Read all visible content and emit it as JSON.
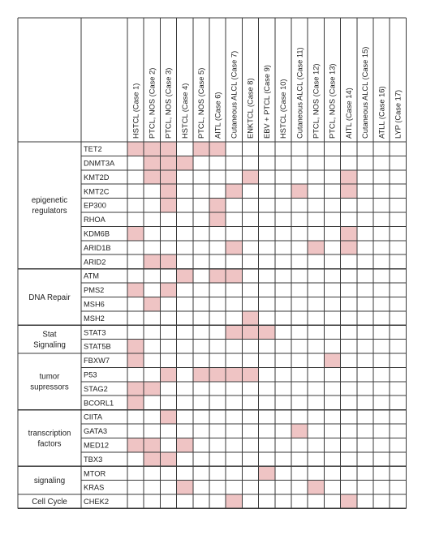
{
  "chart_data": {
    "type": "heatmap",
    "title": "",
    "xlabel": "",
    "ylabel": "",
    "columns": [
      "HSTCL (Case 1)",
      "PTCL, NOS (Case 2)",
      "PTCL, NOS (Case 3)",
      "HSTCL (Case 4)",
      "PTCL, NOS (Case 5)",
      "AITL (Case 6)",
      "Cutaneous ALCL (Case 7)",
      "ENKTCL (Case 8)",
      "EBV + PTCL (Case 9)",
      "HSTCL (Case 10)",
      "Cutaneous ALCL (Case 11)",
      "PTCL, NOS (Case 12)",
      "PTCL, NOS (Case 13)",
      "AITL (Case 14)",
      "Cutaneous ALCL (Case 15)",
      "ATLL (Case 16)",
      "LYP (Case 17)"
    ],
    "groups": [
      {
        "label_lines": [
          "epigenetic",
          "regulators"
        ],
        "rows": [
          "TET2",
          "DNMT3A",
          "KMT2D",
          "KMT2C",
          "EP300",
          "RHOA",
          "KDM6B",
          "ARID1B",
          "ARID2"
        ]
      },
      {
        "label_lines": [
          "DNA Repair"
        ],
        "rows": [
          "ATM",
          "PMS2",
          "MSH6",
          "MSH2"
        ]
      },
      {
        "label_lines": [
          "Stat",
          "Signaling"
        ],
        "rows": [
          "STAT3",
          "STAT5B"
        ]
      },
      {
        "label_lines": [
          "tumor",
          "supressors"
        ],
        "rows": [
          "FBXW7",
          "P53",
          "STAG2",
          "BCORL1"
        ]
      },
      {
        "label_lines": [
          "transcription",
          "factors"
        ],
        "rows": [
          "CIITA",
          "GATA3",
          "MED12",
          "TBX3"
        ]
      },
      {
        "label_lines": [
          "signaling"
        ],
        "rows": [
          "MTOR",
          "KRAS"
        ]
      },
      {
        "label_lines": [
          "Cell Cycle"
        ],
        "rows": [
          "CHEK2"
        ]
      }
    ],
    "values": {
      "TET2": [
        1,
        1,
        1,
        0,
        1,
        1,
        0,
        0,
        0,
        0,
        0,
        0,
        0,
        0,
        0,
        0,
        0
      ],
      "DNMT3A": [
        0,
        1,
        1,
        1,
        0,
        0,
        0,
        0,
        0,
        0,
        0,
        0,
        0,
        0,
        0,
        0,
        0
      ],
      "KMT2D": [
        0,
        1,
        1,
        0,
        0,
        0,
        0,
        1,
        0,
        0,
        0,
        0,
        0,
        1,
        0,
        0,
        0
      ],
      "KMT2C": [
        0,
        0,
        1,
        0,
        0,
        0,
        1,
        0,
        0,
        0,
        1,
        0,
        0,
        1,
        0,
        0,
        0
      ],
      "EP300": [
        0,
        0,
        1,
        0,
        0,
        1,
        0,
        0,
        0,
        0,
        0,
        0,
        0,
        0,
        0,
        0,
        0
      ],
      "RHOA": [
        0,
        0,
        0,
        0,
        0,
        1,
        0,
        0,
        0,
        0,
        0,
        0,
        0,
        0,
        0,
        0,
        0
      ],
      "KDM6B": [
        1,
        0,
        0,
        0,
        0,
        0,
        0,
        0,
        0,
        0,
        0,
        0,
        0,
        1,
        0,
        0,
        0
      ],
      "ARID1B": [
        0,
        0,
        0,
        0,
        0,
        0,
        1,
        0,
        0,
        0,
        0,
        1,
        0,
        1,
        0,
        0,
        0
      ],
      "ARID2": [
        0,
        1,
        1,
        0,
        0,
        0,
        0,
        0,
        0,
        0,
        0,
        0,
        0,
        0,
        0,
        0,
        0
      ],
      "ATM": [
        0,
        0,
        0,
        1,
        0,
        1,
        1,
        0,
        0,
        0,
        0,
        0,
        0,
        0,
        0,
        0,
        0
      ],
      "PMS2": [
        1,
        0,
        1,
        0,
        0,
        0,
        0,
        0,
        0,
        0,
        0,
        0,
        0,
        0,
        0,
        0,
        0
      ],
      "MSH6": [
        0,
        1,
        0,
        0,
        0,
        0,
        0,
        0,
        0,
        0,
        0,
        0,
        0,
        0,
        0,
        0,
        0
      ],
      "MSH2": [
        0,
        0,
        0,
        0,
        0,
        0,
        0,
        1,
        0,
        0,
        0,
        0,
        0,
        0,
        0,
        0,
        0
      ],
      "STAT3": [
        0,
        0,
        0,
        0,
        0,
        0,
        1,
        1,
        1,
        0,
        0,
        0,
        0,
        0,
        0,
        0,
        0
      ],
      "STAT5B": [
        1,
        0,
        0,
        0,
        0,
        0,
        0,
        0,
        0,
        0,
        0,
        0,
        0,
        0,
        0,
        0,
        0
      ],
      "FBXW7": [
        1,
        0,
        0,
        0,
        0,
        0,
        0,
        0,
        0,
        0,
        0,
        0,
        1,
        0,
        0,
        0,
        0
      ],
      "P53": [
        0,
        0,
        1,
        0,
        1,
        1,
        1,
        1,
        0,
        0,
        0,
        0,
        0,
        0,
        0,
        0,
        0
      ],
      "STAG2": [
        1,
        1,
        0,
        0,
        0,
        0,
        0,
        0,
        0,
        0,
        0,
        0,
        0,
        0,
        0,
        0,
        0
      ],
      "BCORL1": [
        1,
        0,
        0,
        0,
        0,
        0,
        0,
        0,
        0,
        0,
        0,
        0,
        0,
        0,
        0,
        0,
        0
      ],
      "CIITA": [
        0,
        0,
        1,
        0,
        0,
        0,
        0,
        0,
        0,
        0,
        0,
        0,
        0,
        0,
        0,
        0,
        0
      ],
      "GATA3": [
        0,
        0,
        0,
        0,
        0,
        0,
        0,
        0,
        0,
        0,
        1,
        0,
        0,
        0,
        0,
        0,
        0
      ],
      "MED12": [
        1,
        1,
        0,
        1,
        0,
        0,
        0,
        0,
        0,
        0,
        0,
        0,
        0,
        0,
        0,
        0,
        0
      ],
      "TBX3": [
        0,
        1,
        1,
        0,
        0,
        0,
        0,
        0,
        0,
        0,
        0,
        0,
        0,
        0,
        0,
        0,
        0
      ],
      "MTOR": [
        0,
        0,
        0,
        0,
        0,
        0,
        0,
        0,
        1,
        0,
        0,
        0,
        0,
        0,
        0,
        0,
        0
      ],
      "KRAS": [
        0,
        0,
        0,
        1,
        0,
        0,
        0,
        0,
        0,
        0,
        0,
        1,
        0,
        0,
        0,
        0,
        0
      ],
      "CHEK2": [
        0,
        0,
        0,
        0,
        0,
        0,
        1,
        0,
        0,
        0,
        0,
        0,
        0,
        1,
        0,
        0,
        0
      ]
    },
    "colors": {
      "mutated": "#efc4c4",
      "empty": "#ffffff",
      "grid": "#3a3a3a"
    }
  }
}
